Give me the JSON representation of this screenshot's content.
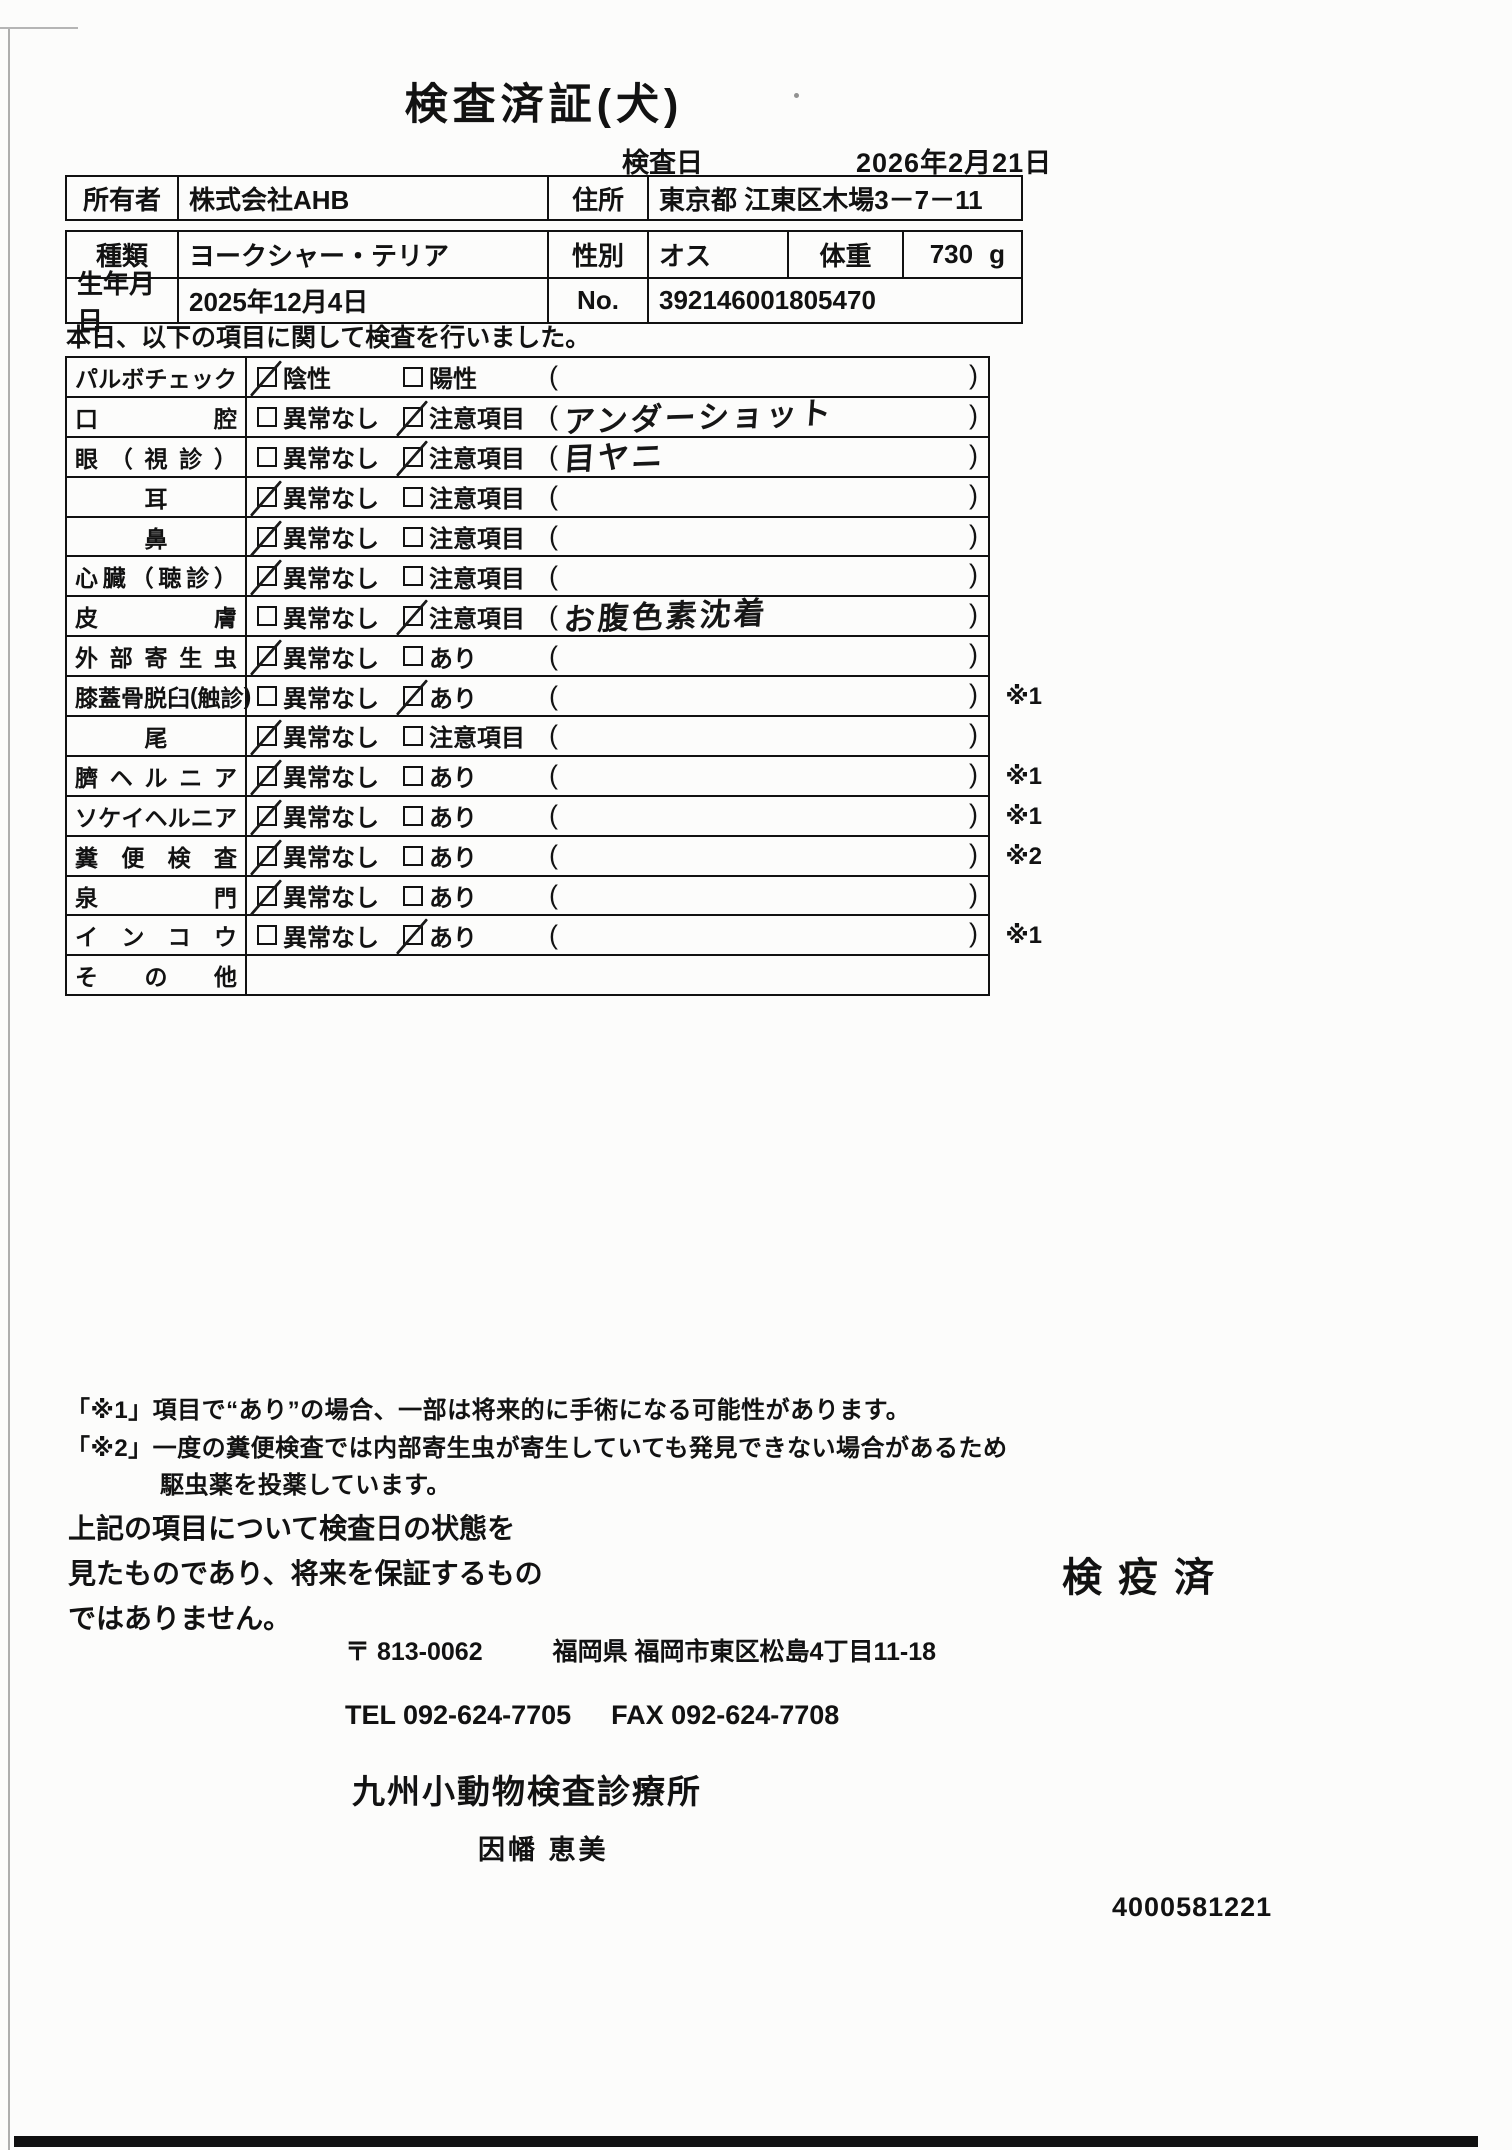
{
  "title": "検査済証(犬)",
  "header": {
    "date_label": "検査日",
    "date_value": "2026年2月21日"
  },
  "owner": {
    "label": "所有者",
    "value": "株式会社AHB",
    "addr_label": "住所",
    "addr_value": "東京都 江東区木場3－7－11"
  },
  "pet": {
    "breed_label": "種類",
    "breed_value": "ヨークシャー・テリア",
    "sex_label": "性別",
    "sex_value": "オス",
    "weight_label": "体重",
    "weight_value": "730",
    "weight_unit": "g",
    "birth_label": "生年月日",
    "birth_value": "2025年12月4日",
    "no_label": "No.",
    "no_value": "392146001805470"
  },
  "intro": "本日、以下の項目に関して検査を行いました。",
  "exam": {
    "rows": [
      {
        "item": "パルボチェック",
        "options": [
          {
            "label": "陰性",
            "checked": true
          },
          {
            "label": "陽性",
            "checked": false
          }
        ],
        "note": "",
        "mark": ""
      },
      {
        "item": "口腔",
        "options": [
          {
            "label": "異常なし",
            "checked": false
          },
          {
            "label": "注意項目",
            "checked": true
          }
        ],
        "note": "アンダーショット",
        "mark": ""
      },
      {
        "item": "眼（視診）",
        "options": [
          {
            "label": "異常なし",
            "checked": false
          },
          {
            "label": "注意項目",
            "checked": true
          }
        ],
        "note": "目ヤニ",
        "mark": ""
      },
      {
        "item": "耳",
        "options": [
          {
            "label": "異常なし",
            "checked": true
          },
          {
            "label": "注意項目",
            "checked": false
          }
        ],
        "note": "",
        "mark": ""
      },
      {
        "item": "鼻",
        "options": [
          {
            "label": "異常なし",
            "checked": true
          },
          {
            "label": "注意項目",
            "checked": false
          }
        ],
        "note": "",
        "mark": ""
      },
      {
        "item": "心臓（聴診）",
        "options": [
          {
            "label": "異常なし",
            "checked": true
          },
          {
            "label": "注意項目",
            "checked": false
          }
        ],
        "note": "",
        "mark": ""
      },
      {
        "item": "皮膚",
        "options": [
          {
            "label": "異常なし",
            "checked": false
          },
          {
            "label": "注意項目",
            "checked": true
          }
        ],
        "note": "お腹色素沈着",
        "mark": ""
      },
      {
        "item": "外部寄生虫",
        "options": [
          {
            "label": "異常なし",
            "checked": true
          },
          {
            "label": "あり",
            "checked": false
          }
        ],
        "note": "",
        "mark": ""
      },
      {
        "item": "膝蓋骨脱臼(触診)",
        "options": [
          {
            "label": "異常なし",
            "checked": false
          },
          {
            "label": "あり",
            "checked": true
          }
        ],
        "note": "",
        "mark": "※1"
      },
      {
        "item": "尾",
        "options": [
          {
            "label": "異常なし",
            "checked": true
          },
          {
            "label": "注意項目",
            "checked": false
          }
        ],
        "note": "",
        "mark": ""
      },
      {
        "item": "臍ヘルニア",
        "options": [
          {
            "label": "異常なし",
            "checked": true
          },
          {
            "label": "あり",
            "checked": false
          }
        ],
        "note": "",
        "mark": "※1"
      },
      {
        "item": "ソケイヘルニア",
        "options": [
          {
            "label": "異常なし",
            "checked": true
          },
          {
            "label": "あり",
            "checked": false
          }
        ],
        "note": "",
        "mark": "※1"
      },
      {
        "item": "糞便検査",
        "options": [
          {
            "label": "異常なし",
            "checked": true
          },
          {
            "label": "あり",
            "checked": false
          }
        ],
        "note": "",
        "mark": "※2"
      },
      {
        "item": "泉門",
        "options": [
          {
            "label": "異常なし",
            "checked": true
          },
          {
            "label": "あり",
            "checked": false
          }
        ],
        "note": "",
        "mark": ""
      },
      {
        "item": "インコウ",
        "options": [
          {
            "label": "異常なし",
            "checked": false
          },
          {
            "label": "あり",
            "checked": true
          }
        ],
        "note": "",
        "mark": "※1"
      },
      {
        "item": "その他",
        "options": [],
        "note": "",
        "mark": ""
      }
    ]
  },
  "footnotes": {
    "line1": "「※1」項目で“あり”の場合、一部は将来的に手術になる可能性があります。",
    "line2": "「※2」一度の糞便検査では内部寄生虫が寄生していても発見できない場合があるため",
    "line3": "駆虫薬を投薬しています。"
  },
  "disclaimer": {
    "line1": "上記の項目について検査日の状態を",
    "line2": "見たものであり、将来を保証するもの",
    "line3": "ではありません。"
  },
  "stamp": "検疫済",
  "clinic": {
    "postal": "〒 813-0062",
    "address": "福岡県 福岡市東区松島4丁目11-18",
    "tel": "TEL 092-624-7705",
    "fax": "FAX 092-624-7708",
    "name": "九州小動物検査診療所",
    "person": "因幡 恵美",
    "serial": "4000581221"
  }
}
